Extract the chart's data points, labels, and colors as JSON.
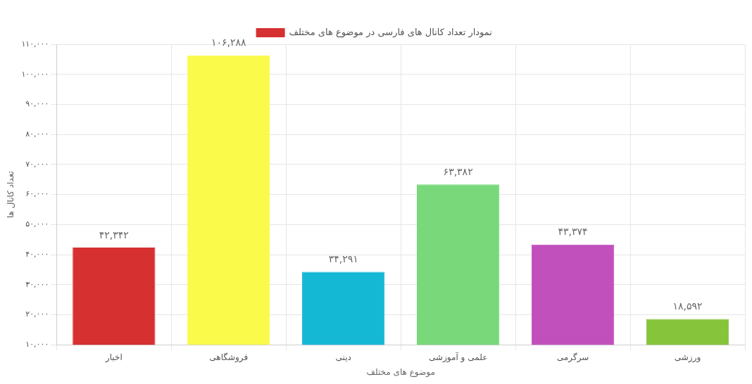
{
  "chart_data": {
    "type": "bar",
    "xlabel": "موضوع های مختلف",
    "ylabel": "تعداد کانال ها",
    "categories": [
      "اخبار",
      "فروشگاهی",
      "دینی",
      "علمی و آموزشی",
      "سرگرمی",
      "ورزشی"
    ],
    "series": [
      {
        "name": "نمودار تعداد کانال های فارسی در موضوع های مختلف",
        "color": "#d63031",
        "colors": [
          "#d63031",
          "#fafa4b",
          "#14b8d4",
          "#78d87a",
          "#c150bd",
          "#86c43c"
        ],
        "values": [
          42342,
          106288,
          34291,
          63382,
          43374,
          18592
        ],
        "value_labels": [
          "۴۲,۳۴۲",
          "۱۰۶,۲۸۸",
          "۳۴,۲۹۱",
          "۶۳,۳۸۲",
          "۴۳,۳۷۴",
          "۱۸,۵۹۲"
        ]
      }
    ],
    "ylim": [
      10000,
      110000
    ],
    "yticks": [
      {
        "value": 10000,
        "label": "۱۰,۰۰۰"
      },
      {
        "value": 20000,
        "label": "۲۰,۰۰۰"
      },
      {
        "value": 30000,
        "label": "۳۰,۰۰۰"
      },
      {
        "value": 40000,
        "label": "۴۰,۰۰۰"
      },
      {
        "value": 50000,
        "label": "۵۰,۰۰۰"
      },
      {
        "value": 60000,
        "label": "۶۰,۰۰۰"
      },
      {
        "value": 70000,
        "label": "۷۰,۰۰۰"
      },
      {
        "value": 80000,
        "label": "۸۰,۰۰۰"
      },
      {
        "value": 90000,
        "label": "۹۰,۰۰۰"
      },
      {
        "value": 100000,
        "label": "۱۰۰,۰۰۰"
      },
      {
        "value": 110000,
        "label": "۱۱۰,۰۰۰"
      }
    ],
    "grid": true,
    "legend": "top"
  }
}
